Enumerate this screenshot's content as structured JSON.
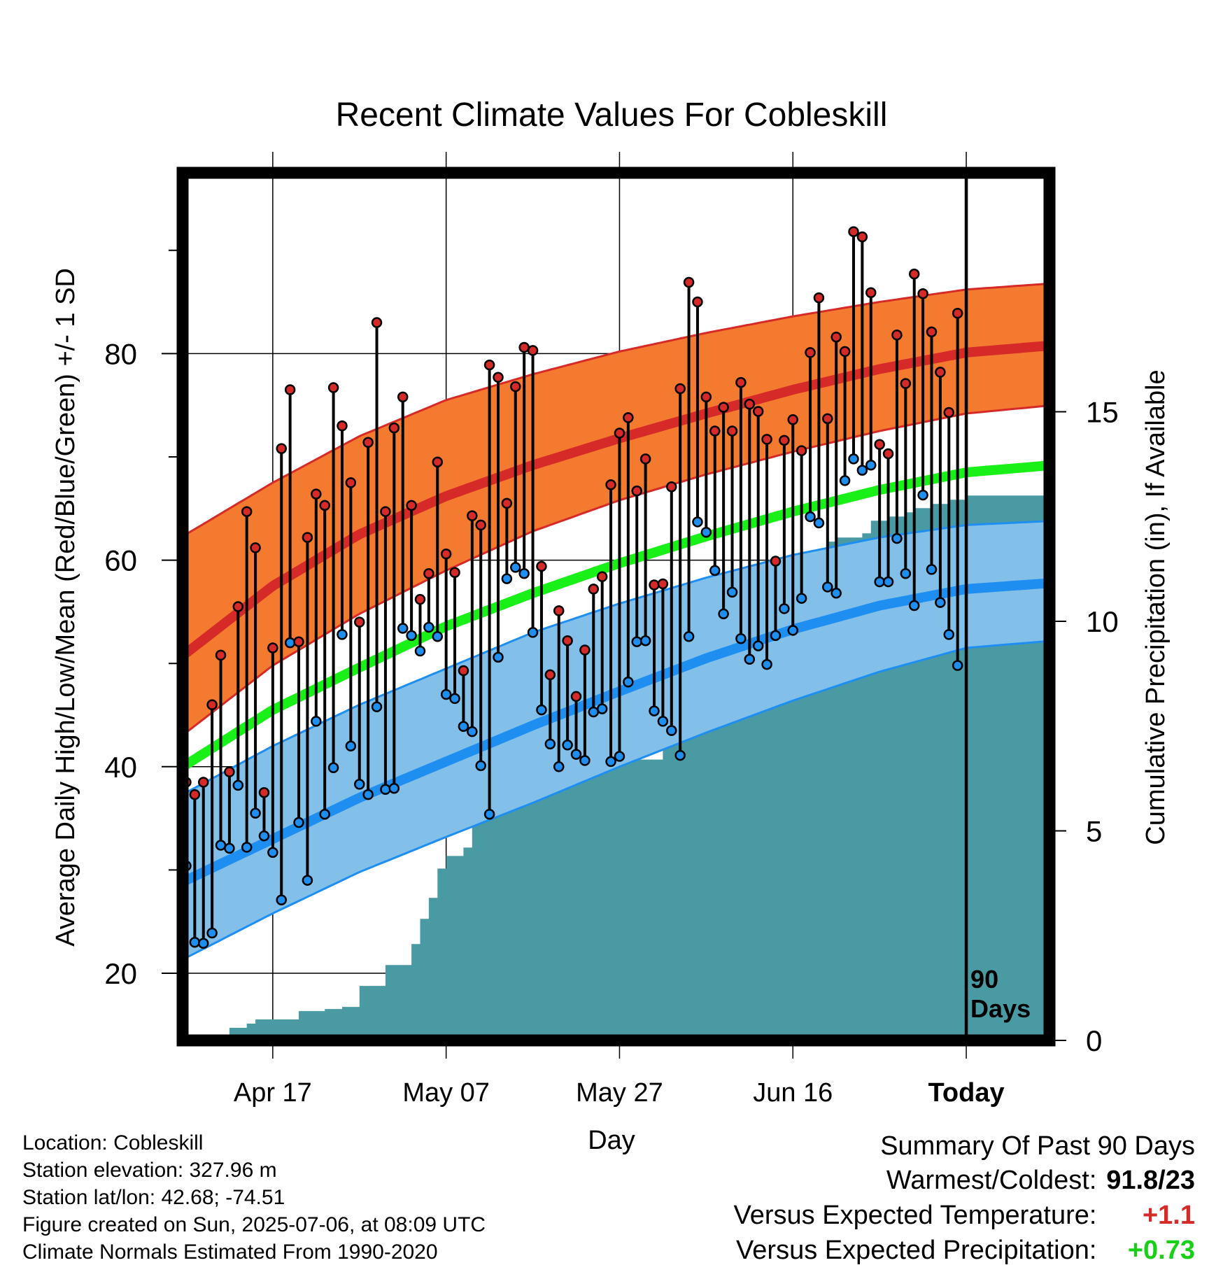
{
  "chart_data": {
    "type": "line",
    "title": "Recent Climate Values For Cobleskill",
    "xlabel": "Day",
    "ylabel": "Average Daily High/Low/Mean (Red/Blue/Green) +/- 1 SD",
    "y2label": "Cumulative Precipitation (in), If Available",
    "ylim": [
      13.5,
      97.5
    ],
    "y2lim": [
      0,
      20.7
    ],
    "yticks": [
      20,
      40,
      60,
      80
    ],
    "y2ticks": [
      0,
      5,
      10,
      15
    ],
    "x_start": "2025-04-07",
    "x_end": "2025-07-15",
    "x_ticks": [
      {
        "day": 10,
        "label": "Apr 17"
      },
      {
        "day": 30,
        "label": "May 07"
      },
      {
        "day": 50,
        "label": "May 27"
      },
      {
        "day": 70,
        "label": "Jun 16"
      },
      {
        "day": 90,
        "label": "Today"
      }
    ],
    "today_marker": {
      "day": 90,
      "label_line1": "90",
      "label_line2": "Days"
    },
    "grid": true,
    "colors": {
      "high_band": "#f47a30",
      "high_mean": "#d62a28",
      "low_band": "#82c0ea",
      "low_mean": "#1e8ff0",
      "mean": "#18f018",
      "precip": "#4a9aa4",
      "high_point": "#d62a28",
      "low_point": "#1e8ff0"
    },
    "normals": {
      "days": [
        0,
        10,
        20,
        30,
        40,
        50,
        60,
        70,
        80,
        90,
        100
      ],
      "high_mean": [
        51,
        57.5,
        62.5,
        66.2,
        69.2,
        71.8,
        74.2,
        76.5,
        78.5,
        80.1,
        80.8
      ],
      "high_upper": [
        62.5,
        67.5,
        72,
        75.5,
        78,
        80.2,
        82,
        83.6,
        85,
        86.2,
        86.8
      ],
      "high_lower": [
        43.3,
        49.8,
        54.8,
        59,
        62.8,
        65.8,
        68.3,
        70.5,
        72.5,
        74.2,
        75
      ],
      "low_mean": [
        29,
        33,
        37,
        40.5,
        44,
        47.3,
        50.5,
        53.3,
        55.6,
        57.2,
        57.8
      ],
      "low_upper": [
        37.5,
        42,
        46,
        49.5,
        53,
        55.8,
        58.3,
        60.5,
        62.2,
        63.4,
        63.8
      ],
      "low_lower": [
        21.5,
        25.8,
        29.8,
        33.2,
        36.5,
        40,
        43.3,
        46.4,
        49.2,
        51.5,
        52.2
      ],
      "mean": [
        40.2,
        45.5,
        49.6,
        53.6,
        56.8,
        59.7,
        62.3,
        64.7,
        66.8,
        68.5,
        69.2
      ]
    },
    "series": [
      {
        "name": "High",
        "values": [
          38.5,
          37.3,
          38.5,
          46.0,
          50.8,
          39.5,
          55.5,
          64.7,
          61.2,
          37.5,
          51.5,
          70.8,
          76.5,
          52.1,
          62.2,
          66.4,
          65.3,
          76.7,
          73.0,
          67.5,
          54.0,
          71.4,
          83.0,
          64.7,
          72.8,
          75.8,
          65.3,
          56.2,
          58.7,
          69.5,
          60.6,
          58.8,
          49.3,
          64.3,
          63.4,
          78.9,
          77.7,
          65.5,
          76.8,
          80.6,
          80.3,
          59.4,
          48.9,
          55.1,
          52.2,
          46.8,
          51.3,
          57.2,
          58.4,
          67.3,
          72.3,
          73.8,
          66.7,
          69.8,
          57.6,
          57.7,
          67.1,
          76.6,
          86.9,
          85.0,
          75.8,
          72.5,
          74.8,
          72.5,
          77.2,
          75.1,
          74.4,
          71.7,
          59.9,
          71.6,
          73.6,
          70.6,
          80.1,
          85.4,
          73.7,
          81.6,
          80.2,
          91.8,
          91.3,
          85.9,
          71.2,
          70.3,
          81.8,
          77.1,
          87.7,
          85.8,
          82.1,
          78.2,
          74.3,
          83.9
        ]
      },
      {
        "name": "Low",
        "values": [
          30.4,
          23.0,
          22.9,
          23.9,
          32.4,
          32.1,
          38.2,
          32.2,
          35.5,
          33.3,
          31.7,
          27.1,
          52.0,
          34.6,
          29.0,
          44.4,
          35.4,
          39.9,
          52.8,
          42.0,
          38.3,
          37.3,
          45.8,
          37.8,
          37.9,
          53.4,
          52.7,
          51.2,
          53.5,
          52.6,
          47.0,
          46.6,
          43.9,
          43.4,
          40.1,
          35.4,
          50.6,
          58.2,
          59.3,
          58.7,
          53.0,
          45.5,
          42.2,
          40.0,
          42.1,
          41.2,
          40.6,
          45.3,
          45.6,
          40.5,
          41.0,
          48.2,
          52.1,
          52.2,
          45.4,
          44.4,
          43.5,
          41.1,
          52.6,
          63.7,
          62.7,
          59.0,
          54.8,
          56.9,
          52.4,
          50.4,
          51.7,
          49.9,
          52.7,
          55.3,
          53.2,
          56.3,
          64.2,
          63.6,
          57.4,
          56.8,
          67.7,
          69.8,
          68.7,
          69.2,
          57.9,
          57.9,
          62.1,
          58.7,
          55.6,
          66.3,
          59.1,
          55.9,
          52.8,
          49.8
        ]
      }
    ],
    "precipitation": {
      "days": [
        0,
        4,
        5,
        6,
        7,
        8,
        9,
        10,
        11,
        12,
        13,
        14,
        15,
        16,
        17,
        18,
        19,
        20,
        21,
        22,
        23,
        24,
        25,
        26,
        27,
        28,
        29,
        30,
        31,
        32,
        33,
        34,
        35,
        36,
        37,
        38,
        39,
        40,
        41,
        42,
        43,
        44,
        45,
        46,
        47,
        48,
        49,
        50,
        51,
        52,
        53,
        54,
        55,
        56,
        57,
        58,
        59,
        60,
        61,
        62,
        63,
        64,
        65,
        66,
        67,
        68,
        69,
        70,
        71,
        72,
        73,
        74,
        75,
        76,
        77,
        78,
        79,
        80,
        81,
        82,
        83,
        84,
        85,
        86,
        87,
        88,
        89,
        90,
        99.5
      ],
      "values": [
        0,
        0,
        0.3,
        0.3,
        0.4,
        0.5,
        0.5,
        0.5,
        0.5,
        0.5,
        0.7,
        0.7,
        0.7,
        0.75,
        0.75,
        0.8,
        0.8,
        1.3,
        1.3,
        1.3,
        1.8,
        1.8,
        1.8,
        2.3,
        2.9,
        3.4,
        4.1,
        4.4,
        4.4,
        4.6,
        5.8,
        5.8,
        5.8,
        5.8,
        5.8,
        5.85,
        6.0,
        6.1,
        6.1,
        6.1,
        6.1,
        6.2,
        6.6,
        6.7,
        6.7,
        6.7,
        6.7,
        6.7,
        6.7,
        6.7,
        6.7,
        6.7,
        8.0,
        8.0,
        8.0,
        8.0,
        8.6,
        8.9,
        10.5,
        10.6,
        10.9,
        11.0,
        11.2,
        11.3,
        11.3,
        11.3,
        11.3,
        11.35,
        11.4,
        11.5,
        11.6,
        11.9,
        12.0,
        12.0,
        12.0,
        12.1,
        12.4,
        12.4,
        12.5,
        12.5,
        12.6,
        12.7,
        12.7,
        12.8,
        12.8,
        12.9,
        12.9,
        13.0,
        13.0
      ]
    }
  },
  "footer": {
    "location": "Location: Cobleskill",
    "elevation": "Station elevation: 327.96 m",
    "latlon": "Station lat/lon: 42.68; -74.51",
    "created": "Figure created on Sun, 2025-07-06, at 08:09 UTC",
    "normals": "Climate Normals Estimated From 1990-2020"
  },
  "summary": {
    "title": "Summary Of Past 90 Days",
    "warmest_label": "Warmest/Coldest:",
    "warmest_value": "91.8/23",
    "temp_label": "Versus Expected Temperature:",
    "temp_value": "+1.1",
    "temp_color": "#d62a28",
    "precip_label": "Versus Expected Precipitation:",
    "precip_value": "+0.73",
    "precip_color": "#18d018"
  }
}
